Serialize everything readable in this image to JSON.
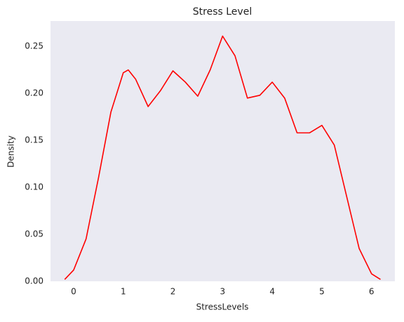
{
  "chart_data": {
    "type": "line",
    "title": "Stress Level",
    "x_label": "StressLevels",
    "y_label": "Density",
    "x": [
      -0.18,
      0,
      0.25,
      0.5,
      0.75,
      1.0,
      1.1,
      1.25,
      1.5,
      1.75,
      2.0,
      2.25,
      2.5,
      2.75,
      3.0,
      3.25,
      3.5,
      3.75,
      4.0,
      4.25,
      4.5,
      4.75,
      5.0,
      5.25,
      5.5,
      5.75,
      6.0,
      6.18
    ],
    "series": [
      {
        "name": "StressLevels",
        "color": "#ff0000",
        "values": [
          0.002,
          0.012,
          0.045,
          0.11,
          0.18,
          0.222,
          0.225,
          0.215,
          0.186,
          0.203,
          0.224,
          0.212,
          0.197,
          0.225,
          0.261,
          0.24,
          0.195,
          0.198,
          0.212,
          0.195,
          0.158,
          0.158,
          0.166,
          0.145,
          0.09,
          0.035,
          0.008,
          0.002
        ]
      }
    ],
    "xlim": [
      -0.466,
      6.47
    ],
    "ylim": [
      0,
      0.277
    ],
    "xticks": [
      0,
      1,
      2,
      3,
      4,
      5,
      6
    ],
    "yticks": [
      {
        "value": 0,
        "label": "0.00"
      },
      {
        "value": 0.05,
        "label": "0.05"
      },
      {
        "value": 0.1,
        "label": "0.10"
      },
      {
        "value": 0.15,
        "label": "0.15"
      },
      {
        "value": 0.2,
        "label": "0.20"
      },
      {
        "value": 0.25,
        "label": "0.25"
      }
    ],
    "grid": false,
    "background": "#eaeaf2"
  }
}
